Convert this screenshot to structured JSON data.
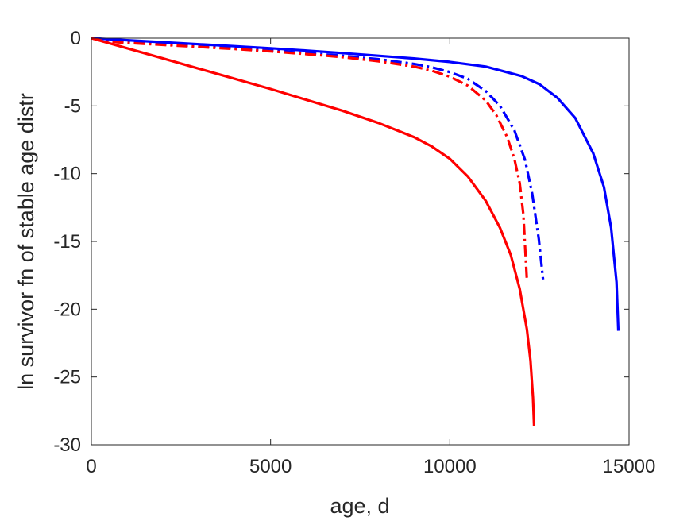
{
  "chart_data": {
    "type": "line",
    "title": "",
    "xlabel": "age, d",
    "ylabel": "ln survivor fn of stable age distr",
    "xlim": [
      0,
      15000
    ],
    "ylim": [
      -30,
      0
    ],
    "xticks": [
      0,
      5000,
      10000,
      15000
    ],
    "xtick_labels": [
      "0",
      "5000",
      "10000",
      "15000"
    ],
    "yticks": [
      0,
      -5,
      -10,
      -15,
      -20,
      -25,
      -30
    ],
    "ytick_labels": [
      "0",
      "-5",
      "-10",
      "-15",
      "-20",
      "-25",
      "-30"
    ],
    "grid": false,
    "legend": false,
    "series": [
      {
        "color": "#0000ff",
        "style": "solid",
        "x": [
          0,
          1000,
          2000,
          3000,
          4000,
          5000,
          6000,
          7000,
          8000,
          9000,
          10000,
          11000,
          12000,
          12500,
          13000,
          13500,
          14000,
          14300,
          14500,
          14650,
          14700
        ],
        "y": [
          0,
          -0.15,
          -0.3,
          -0.45,
          -0.6,
          -0.75,
          -0.92,
          -1.1,
          -1.3,
          -1.5,
          -1.75,
          -2.1,
          -2.8,
          -3.4,
          -4.4,
          -5.9,
          -8.5,
          -11.0,
          -14.0,
          -18.0,
          -21.6
        ]
      },
      {
        "color": "#0000ff",
        "style": "dashdot",
        "x": [
          0,
          400,
          1000,
          2000,
          3000,
          4000,
          5000,
          6000,
          7000,
          8000,
          9000,
          9500,
          10000,
          10500,
          11000,
          11400,
          11800,
          12100,
          12300,
          12480,
          12600
        ],
        "y": [
          0,
          -0.2,
          -0.3,
          -0.45,
          -0.6,
          -0.75,
          -0.92,
          -1.1,
          -1.3,
          -1.55,
          -1.9,
          -2.15,
          -2.5,
          -3.0,
          -3.9,
          -5.0,
          -6.8,
          -9.0,
          -11.5,
          -14.8,
          -17.8
        ]
      },
      {
        "color": "#ff0000",
        "style": "dashdot",
        "x": [
          0,
          400,
          1000,
          2000,
          3000,
          4000,
          5000,
          6000,
          7000,
          8000,
          9000,
          9500,
          10000,
          10500,
          11000,
          11300,
          11600,
          11800,
          11950,
          12050,
          12150
        ],
        "y": [
          0,
          -0.25,
          -0.35,
          -0.5,
          -0.65,
          -0.8,
          -0.98,
          -1.18,
          -1.4,
          -1.7,
          -2.1,
          -2.4,
          -2.85,
          -3.5,
          -4.6,
          -5.7,
          -7.3,
          -8.9,
          -10.7,
          -13.0,
          -17.9
        ]
      },
      {
        "color": "#ff0000",
        "style": "solid",
        "x": [
          0,
          1000,
          2000,
          3000,
          4000,
          5000,
          6000,
          7000,
          8000,
          9000,
          9500,
          10000,
          10500,
          11000,
          11400,
          11700,
          11950,
          12150,
          12250,
          12320,
          12350
        ],
        "y": [
          0,
          -0.75,
          -1.5,
          -2.25,
          -3.0,
          -3.75,
          -4.55,
          -5.35,
          -6.25,
          -7.3,
          -8.0,
          -8.9,
          -10.2,
          -12.0,
          -14.0,
          -16.0,
          -18.5,
          -21.5,
          -23.8,
          -26.5,
          -28.6
        ]
      }
    ]
  }
}
